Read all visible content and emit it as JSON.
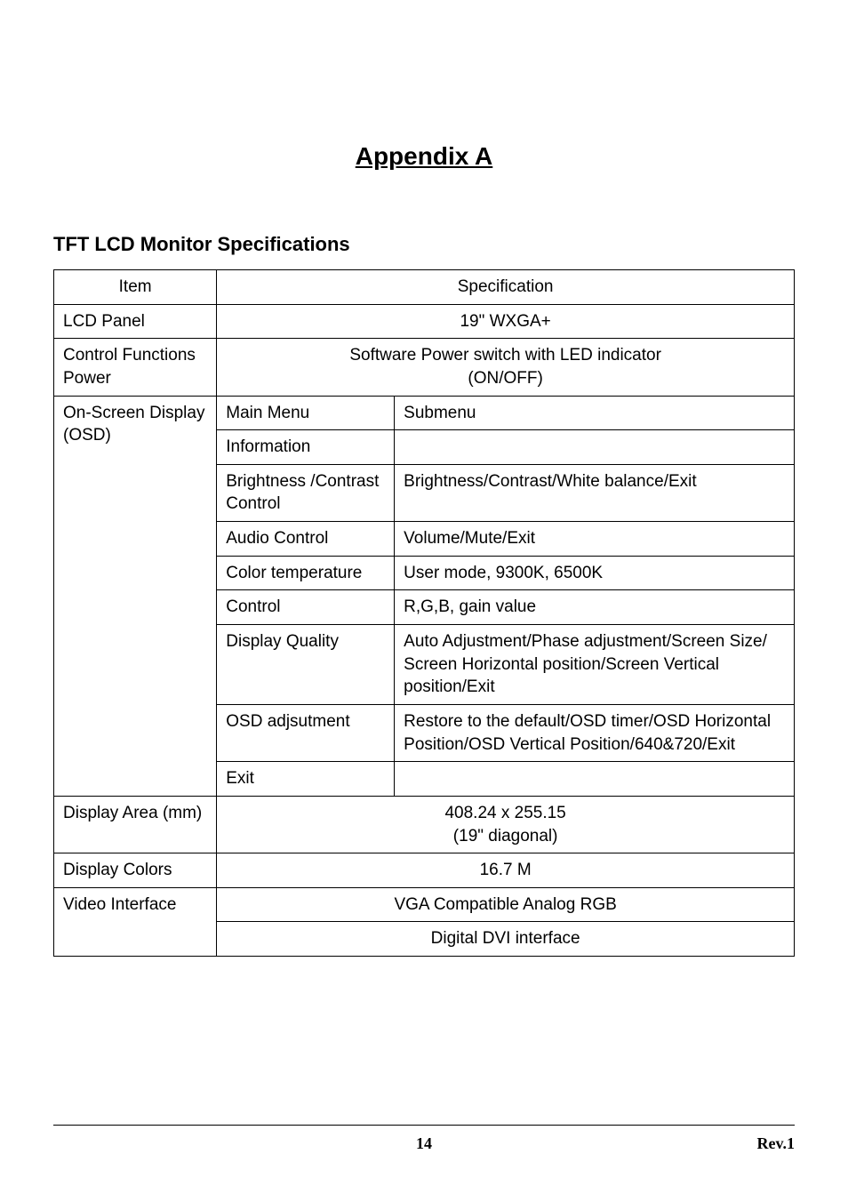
{
  "page": {
    "title": "Appendix A",
    "section_title": "TFT LCD Monitor Specifications",
    "page_number": "14",
    "revision": "Rev.1"
  },
  "table": {
    "header_item": "Item",
    "header_spec": "Specification",
    "rows": {
      "lcd_panel": {
        "item": "LCD Panel",
        "spec": "19\" WXGA+"
      },
      "control_functions": {
        "item": "Control Functions Power",
        "spec_line1": "Software Power switch with LED indicator",
        "spec_line2": "(ON/OFF)"
      },
      "osd": {
        "item": "On-Screen Display (OSD)",
        "header_main": "Main Menu",
        "header_sub": "Submenu",
        "rows": [
          {
            "main": "Information",
            "sub": ""
          },
          {
            "main": "Brightness /Contrast Control",
            "sub": "Brightness/Contrast/White balance/Exit"
          },
          {
            "main": "Audio Control",
            "sub": "Volume/Mute/Exit"
          },
          {
            "main": "Color temperature",
            "sub": "User mode, 9300K, 6500K"
          },
          {
            "main": "Control",
            "sub": "R,G,B, gain value"
          },
          {
            "main": "Display Quality",
            "sub": "Auto Adjustment/Phase adjustment/Screen Size/ Screen Horizontal position/Screen Vertical position/Exit"
          },
          {
            "main": "OSD adjsutment",
            "sub": "Restore to the default/OSD timer/OSD Horizontal Position/OSD Vertical Position/640&720/Exit"
          },
          {
            "main": "Exit",
            "sub": ""
          }
        ]
      },
      "display_area": {
        "item": "Display Area (mm)",
        "spec_line1": "408.24 x 255.15",
        "spec_line2": "(19\" diagonal)"
      },
      "display_colors": {
        "item": "Display Colors",
        "spec": "16.7 M"
      },
      "video_interface": {
        "item": "Video Interface",
        "spec_line1": "VGA Compatible Analog RGB",
        "spec_line2": "Digital DVI interface"
      }
    }
  },
  "style": {
    "title_fontsize": 28,
    "section_fontsize": 22,
    "table_fontsize": 19,
    "footer_fontsize": 18,
    "border_color": "#000000",
    "bg_color": "#ffffff",
    "text_color": "#000000"
  }
}
